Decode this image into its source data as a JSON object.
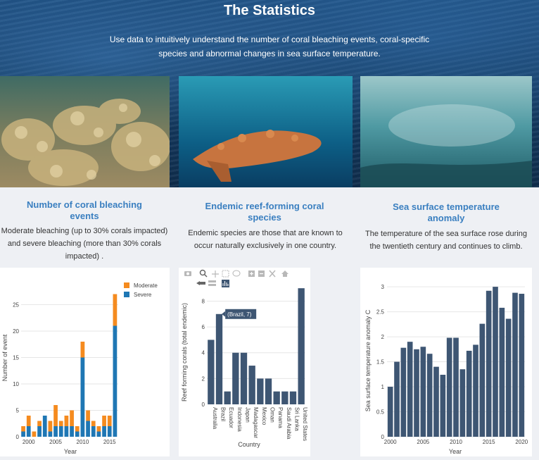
{
  "page": {
    "title": "The Statistics",
    "subtitle": "Use data to intuitively understand the number of coral bleaching events, coral-specific species and abnormal changes in sea surface temperature."
  },
  "cards": [
    {
      "title": "Number of coral bleaching events",
      "text": "Moderate bleaching (up to 30% corals impacted) and severe  bleaching (more than 30% corals impacted) .",
      "photo": "coral-reef-photo"
    },
    {
      "title": "Endemic reef-forming coral species",
      "text": "Endemic species are those that are known to occur naturally exclusively in one country.",
      "photo": "branching-coral-photo"
    },
    {
      "title": "Sea surface temperature anomaly",
      "text": "The temperature of the sea surface rose during the twentieth century and continues to climb.",
      "photo": "underwater-photo"
    }
  ],
  "colors": {
    "moderate": "#f58b1f",
    "severe": "#1f77b4",
    "bar": "#3e5673",
    "title_blue": "#3a7fc0"
  },
  "modebar_icons": [
    "camera-icon",
    "zoom-icon",
    "pan-icon",
    "box-select-icon",
    "lasso-icon",
    "zoom-in-icon",
    "zoom-out-icon",
    "autoscale-icon",
    "home-icon",
    "spike-lines-icon",
    "hover-closest-icon",
    "hover-compare-icon"
  ],
  "chart_data": [
    {
      "type": "bar",
      "stacked": true,
      "title": "",
      "xlabel": "Year",
      "ylabel": "Number of event",
      "ylim": [
        0,
        28
      ],
      "yticks": [
        0,
        5,
        10,
        15,
        20,
        25
      ],
      "xticks": [
        2000,
        2005,
        2010,
        2015
      ],
      "legend_position": "top-right",
      "x": [
        1999,
        2000,
        2001,
        2002,
        2003,
        2004,
        2005,
        2006,
        2007,
        2008,
        2009,
        2010,
        2011,
        2012,
        2013,
        2014,
        2015,
        2016
      ],
      "series": [
        {
          "name": "Moderate",
          "values": [
            1,
            2,
            1,
            1,
            0,
            2,
            4,
            1,
            2,
            3,
            1,
            3,
            2,
            1,
            1,
            2,
            2,
            6
          ]
        },
        {
          "name": "Severe",
          "values": [
            1,
            2,
            0,
            2,
            4,
            1,
            2,
            2,
            2,
            2,
            1,
            15,
            3,
            2,
            1,
            2,
            2,
            21
          ]
        }
      ]
    },
    {
      "type": "bar",
      "title": "",
      "xlabel": "Country",
      "ylabel": "Reef forming corals (total endemic)",
      "ylim": [
        0,
        9.5
      ],
      "yticks": [
        0,
        2,
        4,
        6,
        8
      ],
      "categories": [
        "Australia",
        "Brazil",
        "Ecuador",
        "Indonesia",
        "Japan",
        "Madagascar",
        "Mexico",
        "Oman",
        "Panama",
        "Saudi Arabia",
        "Sri Lanka",
        "United States"
      ],
      "values": [
        5,
        7,
        1,
        4,
        4,
        3,
        2,
        2,
        1,
        1,
        1,
        9
      ],
      "tooltip": {
        "category": "Brazil",
        "value": 7,
        "label": "(Brazil, 7)"
      }
    },
    {
      "type": "bar",
      "title": "",
      "xlabel": "Year",
      "ylabel": "Sea surface temperature anomaly C",
      "ylim": [
        0,
        3.1
      ],
      "yticks": [
        0,
        0.5,
        1,
        1.5,
        2,
        2.5,
        3
      ],
      "xticks": [
        2000,
        2005,
        2010,
        2015,
        2020
      ],
      "x": [
        2000,
        2001,
        2002,
        2003,
        2004,
        2005,
        2006,
        2007,
        2008,
        2009,
        2010,
        2011,
        2012,
        2013,
        2014,
        2015,
        2016,
        2017,
        2018,
        2019,
        2020
      ],
      "values": [
        1.0,
        1.5,
        1.78,
        1.9,
        1.75,
        1.8,
        1.66,
        1.4,
        1.24,
        1.98,
        1.98,
        1.35,
        1.72,
        1.84,
        2.26,
        2.92,
        3.0,
        2.58,
        2.36,
        2.88,
        2.86
      ]
    }
  ]
}
